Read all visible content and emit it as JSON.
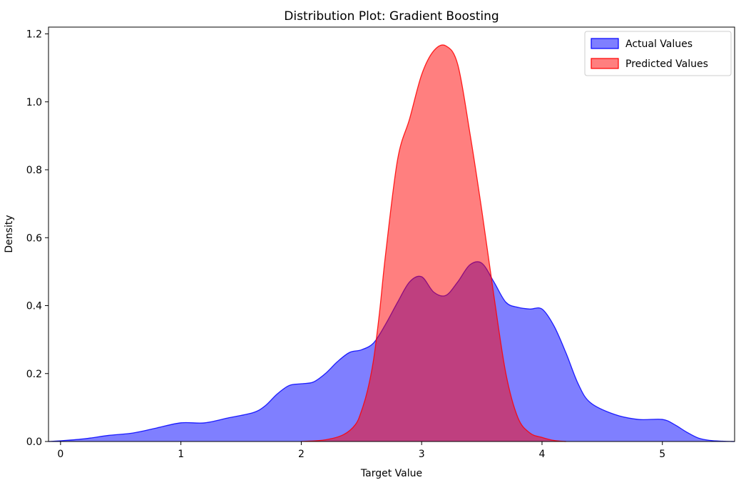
{
  "chart_data": {
    "type": "area",
    "title": "Distribution Plot: Gradient Boosting",
    "xlabel": "Target Value",
    "ylabel": "Density",
    "xlim": [
      -0.1,
      5.6
    ],
    "ylim": [
      0,
      1.22
    ],
    "xticks": [
      0,
      1,
      2,
      3,
      4,
      5
    ],
    "yticks": [
      0.0,
      0.2,
      0.4,
      0.6,
      0.8,
      1.0,
      1.2
    ],
    "grid": false,
    "legend_position": "top-right",
    "series": [
      {
        "name": "Actual Values",
        "color": "#0000ff",
        "x": [
          -0.1,
          0.0,
          0.2,
          0.4,
          0.6,
          0.8,
          1.0,
          1.2,
          1.4,
          1.6,
          1.7,
          1.8,
          1.9,
          2.0,
          2.1,
          2.2,
          2.3,
          2.4,
          2.5,
          2.6,
          2.7,
          2.8,
          2.9,
          3.0,
          3.1,
          3.2,
          3.3,
          3.4,
          3.5,
          3.6,
          3.7,
          3.8,
          3.9,
          4.0,
          4.1,
          4.2,
          4.3,
          4.4,
          4.6,
          4.8,
          5.0,
          5.1,
          5.2,
          5.3,
          5.4,
          5.5,
          5.6
        ],
        "y": [
          0.0,
          0.002,
          0.008,
          0.018,
          0.025,
          0.04,
          0.055,
          0.055,
          0.07,
          0.085,
          0.105,
          0.14,
          0.165,
          0.17,
          0.175,
          0.2,
          0.235,
          0.262,
          0.27,
          0.29,
          0.345,
          0.41,
          0.47,
          0.485,
          0.44,
          0.43,
          0.47,
          0.52,
          0.525,
          0.47,
          0.41,
          0.395,
          0.39,
          0.39,
          0.34,
          0.26,
          0.17,
          0.115,
          0.08,
          0.065,
          0.065,
          0.05,
          0.028,
          0.01,
          0.003,
          0.001,
          0.0
        ]
      },
      {
        "name": "Predicted Values",
        "color": "#ff0000",
        "x": [
          2.0,
          2.2,
          2.35,
          2.45,
          2.5,
          2.55,
          2.6,
          2.65,
          2.7,
          2.8,
          2.9,
          3.0,
          3.1,
          3.2,
          3.3,
          3.4,
          3.5,
          3.6,
          3.7,
          3.8,
          3.9,
          4.0,
          4.1,
          4.2
        ],
        "y": [
          0.0,
          0.005,
          0.02,
          0.05,
          0.09,
          0.15,
          0.24,
          0.38,
          0.55,
          0.83,
          0.95,
          1.08,
          1.15,
          1.165,
          1.11,
          0.91,
          0.68,
          0.43,
          0.2,
          0.07,
          0.025,
          0.012,
          0.003,
          0.0
        ]
      }
    ]
  }
}
